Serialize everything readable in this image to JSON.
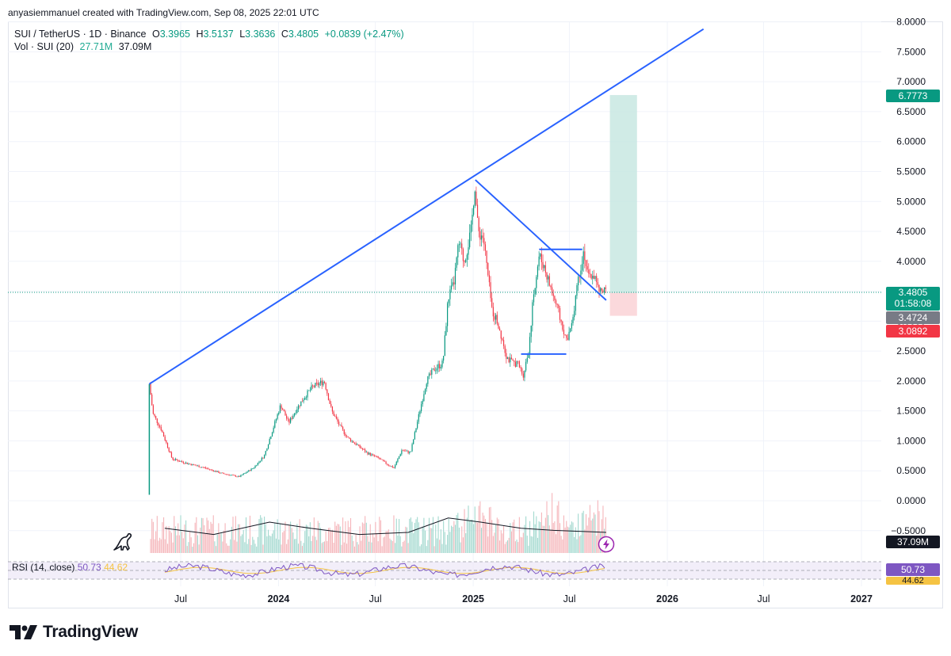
{
  "header": {
    "credit": "anyasiemmanuel created with TradingView.com, Sep 08, 2025 22:01 UTC"
  },
  "legend": {
    "symbol": "SUI / TetherUS · 1D · Binance",
    "open_label": "O",
    "open": "3.3965",
    "high_label": "H",
    "high": "3.5137",
    "low_label": "L",
    "low": "3.3636",
    "close_label": "C",
    "close": "3.4805",
    "change": "+0.0839 (+2.47%)",
    "vol_label": "Vol · SUI (20)",
    "vol_value": "27.71M",
    "vol_ma": "37.09M"
  },
  "rsi": {
    "label": "RSI (14, close)",
    "value": "50.73",
    "ma": "44.62"
  },
  "price_labels": {
    "target": "6.7773",
    "last": "3.4805",
    "countdown": "01:58:08",
    "entry": "3.4724",
    "stop": "3.0892",
    "volume": "37.09M",
    "rsi": "50.73",
    "rsi_ma": "44.62"
  },
  "colors": {
    "up": "#089981",
    "down": "#f23645",
    "trendline": "#2962ff",
    "target_zone": "#c8e8e2",
    "stop_zone": "#fbd5d8",
    "rsi_line": "#7e57c2",
    "rsi_ma": "#f5c343"
  },
  "chart_data": {
    "type": "line",
    "symbol": "SUI/USDT",
    "timeframe": "1D",
    "y_axis_ticks": [
      "8.0000",
      "7.5000",
      "7.0000",
      "6.5000",
      "6.0000",
      "5.5000",
      "5.0000",
      "4.5000",
      "4.0000",
      "3.5000",
      "3.0000",
      "2.5000",
      "2.0000",
      "1.5000",
      "1.0000",
      "0.5000",
      "0.0000",
      "−0.5000"
    ],
    "x_axis_ticks": [
      "Jul",
      "2024",
      "Jul",
      "2025",
      "Jul",
      "2026",
      "Jul",
      "2027"
    ],
    "ylim": [
      -0.5,
      8.0
    ],
    "price_path": {
      "x": [
        "2023-05-03",
        "2023-05-10",
        "2023-05-25",
        "2023-06-15",
        "2023-07-15",
        "2023-08-15",
        "2023-09-15",
        "2023-10-19",
        "2023-11-15",
        "2023-12-05",
        "2023-12-25",
        "2024-01-05",
        "2024-01-20",
        "2024-02-05",
        "2024-02-20",
        "2024-03-05",
        "2024-03-27",
        "2024-04-10",
        "2024-04-25",
        "2024-05-10",
        "2024-05-25",
        "2024-06-15",
        "2024-07-05",
        "2024-07-25",
        "2024-08-05",
        "2024-08-20",
        "2024-09-05",
        "2024-09-20",
        "2024-10-05",
        "2024-10-20",
        "2024-11-05",
        "2024-11-15",
        "2024-11-25",
        "2024-12-05",
        "2024-12-15",
        "2024-12-28",
        "2025-01-04",
        "2025-01-10",
        "2025-01-20",
        "2025-01-28",
        "2025-02-05",
        "2025-02-15",
        "2025-02-25",
        "2025-03-05",
        "2025-03-15",
        "2025-03-25",
        "2025-04-05",
        "2025-04-15",
        "2025-04-25",
        "2025-05-05",
        "2025-05-15",
        "2025-05-25",
        "2025-06-05",
        "2025-06-15",
        "2025-06-25",
        "2025-07-05",
        "2025-07-15",
        "2025-07-28",
        "2025-08-05",
        "2025-08-15",
        "2025-08-25",
        "2025-09-08"
      ],
      "y": [
        1.95,
        1.45,
        1.2,
        0.7,
        0.62,
        0.55,
        0.46,
        0.4,
        0.55,
        0.75,
        1.3,
        1.6,
        1.3,
        1.55,
        1.75,
        1.9,
        2.0,
        1.5,
        1.25,
        1.05,
        0.95,
        0.8,
        0.72,
        0.6,
        0.55,
        0.85,
        0.8,
        1.4,
        2.0,
        2.2,
        2.3,
        3.4,
        3.6,
        4.3,
        4.0,
        4.5,
        5.3,
        4.5,
        4.4,
        3.8,
        3.2,
        3.0,
        2.7,
        2.4,
        2.3,
        2.3,
        2.1,
        2.5,
        3.5,
        4.1,
        3.9,
        3.6,
        3.3,
        3.0,
        2.7,
        2.9,
        3.6,
        4.2,
        3.7,
        3.8,
        3.5,
        3.48
      ]
    },
    "volume_ma": [
      {
        "x": "2023-06-01",
        "y": 0.6
      },
      {
        "x": "2023-09-01",
        "y": 0.45
      },
      {
        "x": "2023-12-15",
        "y": 0.75
      },
      {
        "x": "2024-03-01",
        "y": 0.6
      },
      {
        "x": "2024-06-01",
        "y": 0.45
      },
      {
        "x": "2024-09-01",
        "y": 0.5
      },
      {
        "x": "2024-11-15",
        "y": 0.85
      },
      {
        "x": "2025-01-15",
        "y": 0.75
      },
      {
        "x": "2025-04-01",
        "y": 0.6
      },
      {
        "x": "2025-06-01",
        "y": 0.55
      },
      {
        "x": "2025-09-08",
        "y": 0.5
      }
    ],
    "drawings": [
      {
        "name": "upper-trendline",
        "x": [
          "2023-05-03",
          "2026-03-10"
        ],
        "y": [
          1.95,
          7.88
        ]
      },
      {
        "name": "descending-trendline",
        "x": [
          "2025-01-05",
          "2025-09-08"
        ],
        "y": [
          5.36,
          3.35
        ]
      },
      {
        "name": "resistance-segment",
        "x": [
          "2025-05-05",
          "2025-07-25"
        ],
        "y": [
          4.2,
          4.2
        ]
      },
      {
        "name": "support-segment",
        "x": [
          "2025-04-01",
          "2025-06-25"
        ],
        "y": [
          2.45,
          2.45
        ]
      }
    ],
    "position": {
      "entry": 3.4724,
      "target": 6.7773,
      "stop": 3.0892,
      "x_start": "2025-09-15",
      "x_end": "2025-11-05"
    },
    "last_price": 3.4805,
    "rsi": {
      "value": 50.73,
      "ma": 44.62,
      "bands": [
        70,
        50,
        30
      ]
    },
    "legend_position": "top-left",
    "grid": true
  }
}
